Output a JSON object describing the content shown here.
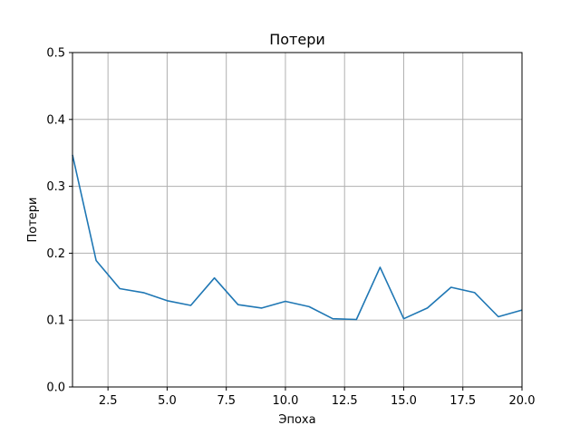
{
  "chart_data": {
    "type": "line",
    "title": "Потери",
    "xlabel": "Эпоха",
    "ylabel": "Потери",
    "xlim": [
      1,
      20
    ],
    "ylim": [
      0,
      0.5
    ],
    "grid": true,
    "x_ticks": [
      2.5,
      5.0,
      7.5,
      10.0,
      12.5,
      15.0,
      17.5,
      20.0
    ],
    "x_tick_labels": [
      "2.5",
      "5.0",
      "7.5",
      "10.0",
      "12.5",
      "15.0",
      "17.5",
      "20.0"
    ],
    "y_ticks": [
      0.0,
      0.1,
      0.2,
      0.3,
      0.4,
      0.5
    ],
    "y_tick_labels": [
      "0.0",
      "0.1",
      "0.2",
      "0.3",
      "0.4",
      "0.5"
    ],
    "series": [
      {
        "color": "#1f77b4",
        "x": [
          1,
          2,
          3,
          4,
          5,
          6,
          7,
          8,
          9,
          10,
          11,
          12,
          13,
          14,
          15,
          16,
          17,
          18,
          19,
          20
        ],
        "y": [
          0.347,
          0.189,
          0.147,
          0.141,
          0.129,
          0.122,
          0.163,
          0.123,
          0.118,
          0.128,
          0.12,
          0.102,
          0.101,
          0.179,
          0.102,
          0.118,
          0.149,
          0.141,
          0.105,
          0.115
        ]
      }
    ]
  }
}
